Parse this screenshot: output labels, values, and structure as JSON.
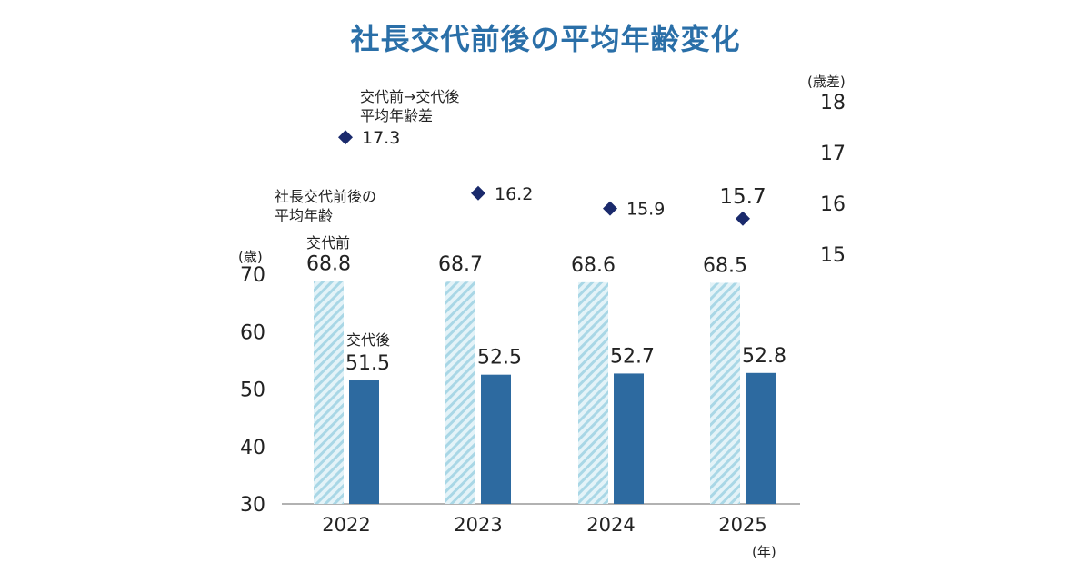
{
  "chart_data": {
    "type": "bar",
    "title": "社長交代前後の平均年齢変化",
    "categories": [
      "2022",
      "2023",
      "2024",
      "2025"
    ],
    "series": [
      {
        "name": "交代前",
        "values": [
          68.8,
          68.7,
          68.6,
          68.5
        ]
      },
      {
        "name": "交代後",
        "values": [
          51.5,
          52.5,
          52.7,
          52.8
        ]
      }
    ],
    "ylim": [
      30,
      70
    ],
    "y_ticks": [
      "30",
      "40",
      "50",
      "60",
      "70"
    ],
    "ylabel": "(歳)",
    "xlabel": "(年)",
    "bar_series_label": "社長交代前後の平均年齢",
    "difference_series": {
      "name": "交代前→交代後平均年齢差",
      "name_lines": [
        "交代前→交代後",
        "平均年齢差"
      ],
      "values": [
        17.3,
        16.2,
        15.9,
        15.7
      ],
      "ylim": [
        15,
        18
      ],
      "y_ticks": [
        "15",
        "16",
        "17",
        "18"
      ],
      "ylabel": "(歳差)"
    },
    "bar_label_lines": [
      "社長交代前後の",
      "平均年齢"
    ],
    "colors": {
      "title": "#2a6fa8",
      "before_stripe": "#a9d7e6",
      "after_bar": "#2d6aa0",
      "marker": "#1a2a6c",
      "axis": "#999999"
    }
  }
}
